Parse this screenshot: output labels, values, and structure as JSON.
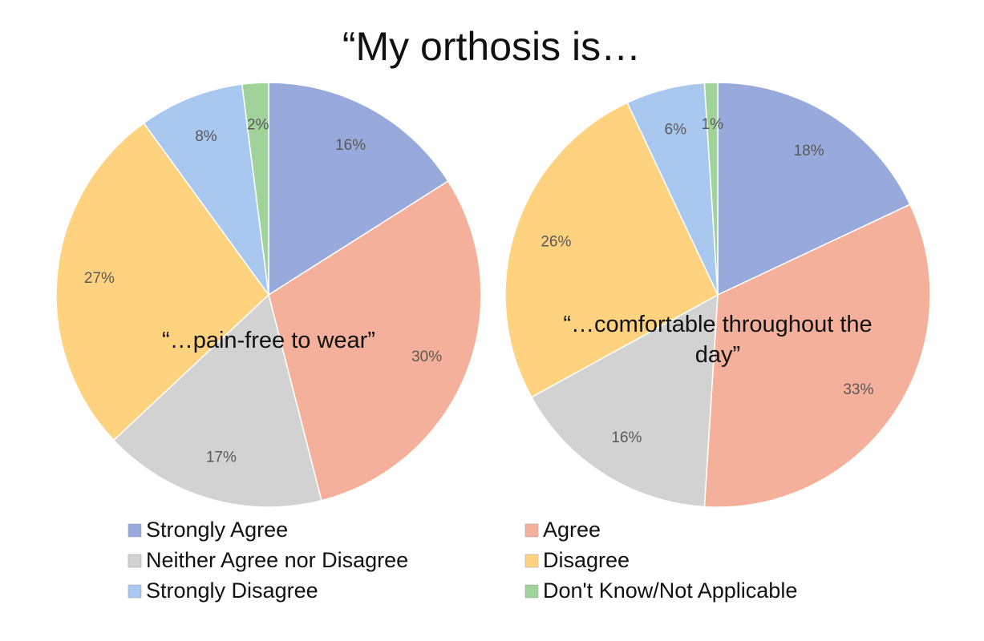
{
  "title": "“My orthosis is…",
  "chart_data": [
    {
      "type": "pie",
      "title": "“…pain-free to wear”",
      "categories": [
        "Strongly Agree",
        "Agree",
        "Neither Agree nor Disagree",
        "Disagree",
        "Strongly Disagree",
        "Don't Know/Not Applicable"
      ],
      "values": [
        16,
        30,
        17,
        27,
        8,
        2
      ],
      "value_labels": [
        "16%",
        "30%",
        "17%",
        "27%",
        "8%",
        "2%"
      ],
      "colors": [
        "#98aadc",
        "#f4b09a",
        "#d2d2d2",
        "#ffd27f",
        "#a9c8ef",
        "#9fd39a"
      ]
    },
    {
      "type": "pie",
      "title": "“…comfortable throughout the day”",
      "categories": [
        "Strongly Agree",
        "Agree",
        "Neither Agree nor Disagree",
        "Disagree",
        "Strongly Disagree",
        "Don't Know/Not Applicable"
      ],
      "values": [
        18,
        33,
        16,
        26,
        6,
        1
      ],
      "value_labels": [
        "18%",
        "33%",
        "16%",
        "26%",
        "6%",
        "1%"
      ],
      "colors": [
        "#98aadc",
        "#f4b09a",
        "#d2d2d2",
        "#ffd27f",
        "#a9c8ef",
        "#9fd39a"
      ]
    }
  ]
}
